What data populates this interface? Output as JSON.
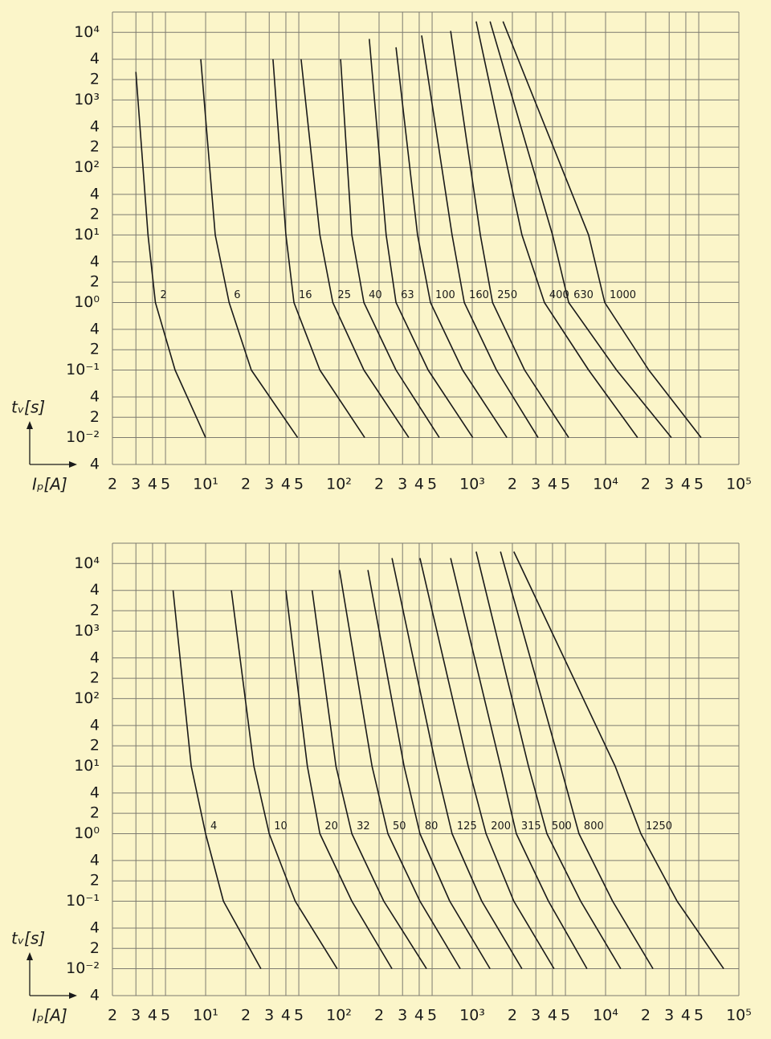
{
  "chart_data": [
    {
      "type": "line",
      "log_x": true,
      "log_y": true,
      "grid": true,
      "color": "#1a1a1a",
      "y_label": "tᵥ[s]",
      "x_label": "Iₚ[A]",
      "xlim": [
        2,
        100000
      ],
      "ylim": [
        0.004,
        20000
      ],
      "xticks": [
        2,
        3,
        4,
        5,
        {
          "value": 10,
          "label": "10¹"
        },
        {
          "value": 20,
          "label": "2"
        },
        {
          "value": 30,
          "label": "3"
        },
        {
          "value": 40,
          "label": "4"
        },
        {
          "value": 50,
          "label": "5"
        },
        {
          "value": 100,
          "label": "10²"
        },
        {
          "value": 200,
          "label": "2"
        },
        {
          "value": 300,
          "label": "3"
        },
        {
          "value": 400,
          "label": "4"
        },
        {
          "value": 500,
          "label": "5"
        },
        {
          "value": 1000,
          "label": "10³"
        },
        {
          "value": 2000,
          "label": "2"
        },
        {
          "value": 3000,
          "label": "3"
        },
        {
          "value": 4000,
          "label": "4"
        },
        {
          "value": 5000,
          "label": "5"
        },
        {
          "value": 10000,
          "label": "10⁴"
        },
        {
          "value": 20000,
          "label": "2"
        },
        {
          "value": 30000,
          "label": "3"
        },
        {
          "value": 40000,
          "label": "4"
        },
        {
          "value": 50000,
          "label": "5"
        },
        {
          "value": 100000,
          "label": "10⁵"
        }
      ],
      "yticks": [
        {
          "value": 10000,
          "label": "10⁴"
        },
        {
          "value": 4000,
          "label": "4"
        },
        {
          "value": 2000,
          "label": "2"
        },
        {
          "value": 1000,
          "label": "10³"
        },
        {
          "value": 400,
          "label": "4"
        },
        {
          "value": 200,
          "label": "2"
        },
        {
          "value": 100,
          "label": "10²"
        },
        {
          "value": 40,
          "label": "4"
        },
        {
          "value": 20,
          "label": "2"
        },
        {
          "value": 10,
          "label": "10¹"
        },
        4,
        2,
        {
          "value": 1,
          "label": "10⁰"
        },
        {
          "value": 0.4,
          "label": "4"
        },
        {
          "value": 0.2,
          "label": "2"
        },
        {
          "value": 0.1,
          "label": "10⁻¹"
        },
        {
          "value": 0.04,
          "label": "4"
        },
        {
          "value": 0.02,
          "label": "2"
        },
        {
          "value": 0.01,
          "label": "10⁻²"
        },
        {
          "value": 0.004,
          "label": "4"
        }
      ],
      "series": [
        {
          "name": "2",
          "x": [
            3,
            3.7,
            4.2,
            5.9,
            10
          ],
          "values": [
            2600,
            10,
            1,
            0.1,
            0.01
          ]
        },
        {
          "name": "6",
          "x": [
            9.2,
            11.8,
            15,
            22,
            49
          ],
          "values": [
            4000,
            10,
            1,
            0.1,
            0.01
          ]
        },
        {
          "name": "16",
          "x": [
            32,
            40,
            46,
            72,
            156
          ],
          "values": [
            4000,
            10,
            1,
            0.1,
            0.01
          ]
        },
        {
          "name": "25",
          "x": [
            52,
            72,
            90,
            154,
            334
          ],
          "values": [
            4000,
            10,
            1,
            0.1,
            0.01
          ]
        },
        {
          "name": "40",
          "x": [
            103,
            125,
            154,
            268,
            566
          ],
          "values": [
            4000,
            10,
            1,
            0.1,
            0.01
          ]
        },
        {
          "name": "63",
          "x": [
            169,
            226,
            268,
            467,
            1010
          ],
          "values": [
            8000,
            10,
            1,
            0.1,
            0.01
          ]
        },
        {
          "name": "100",
          "x": [
            268,
            389,
            486,
            847,
            1820
          ],
          "values": [
            6000,
            10,
            1,
            0.1,
            0.01
          ]
        },
        {
          "name": "160",
          "x": [
            417,
            706,
            871,
            1520,
            3120
          ],
          "values": [
            9000,
            10,
            1,
            0.1,
            0.01
          ]
        },
        {
          "name": "250",
          "x": [
            688,
            1150,
            1420,
            2470,
            5290
          ],
          "values": [
            10500,
            10,
            1,
            0.1,
            0.01
          ]
        },
        {
          "name": "400",
          "x": [
            1070,
            2360,
            3480,
            7460,
            17400
          ],
          "values": [
            14500,
            10,
            1,
            0.1,
            0.01
          ]
        },
        {
          "name": "630",
          "x": [
            1360,
            4000,
            5290,
            12100,
            31200
          ],
          "values": [
            14500,
            10,
            1,
            0.1,
            0.01
          ]
        },
        {
          "name": "1000",
          "x": [
            1700,
            7460,
            9860,
            21100,
            52100
          ],
          "values": [
            14500,
            10,
            1,
            0.1,
            0.01
          ]
        }
      ]
    },
    {
      "type": "line",
      "log_x": true,
      "log_y": true,
      "grid": true,
      "color": "#1a1a1a",
      "y_label": "tᵥ[s]",
      "x_label": "Iₚ[A]",
      "xlim": [
        2,
        100000
      ],
      "ylim": [
        0.004,
        20000
      ],
      "xticks": [
        2,
        3,
        4,
        5,
        {
          "value": 10,
          "label": "10¹"
        },
        {
          "value": 20,
          "label": "2"
        },
        {
          "value": 30,
          "label": "3"
        },
        {
          "value": 40,
          "label": "4"
        },
        {
          "value": 50,
          "label": "5"
        },
        {
          "value": 100,
          "label": "10²"
        },
        {
          "value": 200,
          "label": "2"
        },
        {
          "value": 300,
          "label": "3"
        },
        {
          "value": 400,
          "label": "4"
        },
        {
          "value": 500,
          "label": "5"
        },
        {
          "value": 1000,
          "label": "10³"
        },
        {
          "value": 2000,
          "label": "2"
        },
        {
          "value": 3000,
          "label": "3"
        },
        {
          "value": 4000,
          "label": "4"
        },
        {
          "value": 5000,
          "label": "5"
        },
        {
          "value": 10000,
          "label": "10⁴"
        },
        {
          "value": 20000,
          "label": "2"
        },
        {
          "value": 30000,
          "label": "3"
        },
        {
          "value": 40000,
          "label": "4"
        },
        {
          "value": 50000,
          "label": "5"
        },
        {
          "value": 100000,
          "label": "10⁵"
        }
      ],
      "yticks": [
        {
          "value": 10000,
          "label": "10⁴"
        },
        {
          "value": 4000,
          "label": "4"
        },
        {
          "value": 2000,
          "label": "2"
        },
        {
          "value": 1000,
          "label": "10³"
        },
        {
          "value": 400,
          "label": "4"
        },
        {
          "value": 200,
          "label": "2"
        },
        {
          "value": 100,
          "label": "10²"
        },
        {
          "value": 40,
          "label": "4"
        },
        {
          "value": 20,
          "label": "2"
        },
        {
          "value": 10,
          "label": "10¹"
        },
        4,
        2,
        {
          "value": 1,
          "label": "10⁰"
        },
        {
          "value": 0.4,
          "label": "4"
        },
        {
          "value": 0.2,
          "label": "2"
        },
        {
          "value": 0.1,
          "label": "10⁻¹"
        },
        {
          "value": 0.04,
          "label": "4"
        },
        {
          "value": 0.02,
          "label": "2"
        },
        {
          "value": 0.01,
          "label": "10⁻²"
        },
        {
          "value": 0.004,
          "label": "4"
        }
      ],
      "series": [
        {
          "name": "4",
          "x": [
            5.7,
            7.8,
            10,
            13.6,
            26
          ],
          "values": [
            4000,
            10,
            1,
            0.1,
            0.01
          ]
        },
        {
          "name": "10",
          "x": [
            15.6,
            23,
            30,
            47,
            97
          ],
          "values": [
            4000,
            10,
            1,
            0.1,
            0.01
          ]
        },
        {
          "name": "20",
          "x": [
            40,
            58,
            72,
            125,
            250
          ],
          "values": [
            4000,
            10,
            1,
            0.1,
            0.01
          ]
        },
        {
          "name": "32",
          "x": [
            63,
            95,
            125,
            217,
            454
          ],
          "values": [
            4000,
            10,
            1,
            0.1,
            0.01
          ]
        },
        {
          "name": "50",
          "x": [
            101,
            177,
            233,
            405,
            813
          ],
          "values": [
            8000,
            10,
            1,
            0.1,
            0.01
          ]
        },
        {
          "name": "80",
          "x": [
            165,
            308,
            405,
            678,
            1360
          ],
          "values": [
            8000,
            10,
            1,
            0.1,
            0.01
          ]
        },
        {
          "name": "125",
          "x": [
            250,
            535,
            706,
            1180,
            2360
          ],
          "values": [
            12000,
            10,
            1,
            0.1,
            0.01
          ]
        },
        {
          "name": "200",
          "x": [
            405,
            933,
            1270,
            2050,
            4110
          ],
          "values": [
            12000,
            10,
            1,
            0.1,
            0.01
          ]
        },
        {
          "name": "315",
          "x": [
            688,
            1630,
            2140,
            3730,
            7260
          ],
          "values": [
            12000,
            10,
            1,
            0.1,
            0.01
          ]
        },
        {
          "name": "500",
          "x": [
            1070,
            2640,
            3630,
            6500,
            13000
          ],
          "values": [
            15000,
            10,
            1,
            0.1,
            0.01
          ]
        },
        {
          "name": "800",
          "x": [
            1630,
            4600,
            6320,
            11300,
            22700
          ],
          "values": [
            15000,
            10,
            1,
            0.1,
            0.01
          ]
        },
        {
          "name": "1250",
          "x": [
            2050,
            11800,
            18400,
            34400,
            76900
          ],
          "values": [
            15000,
            10,
            1,
            0.1,
            0.01
          ]
        }
      ]
    }
  ]
}
